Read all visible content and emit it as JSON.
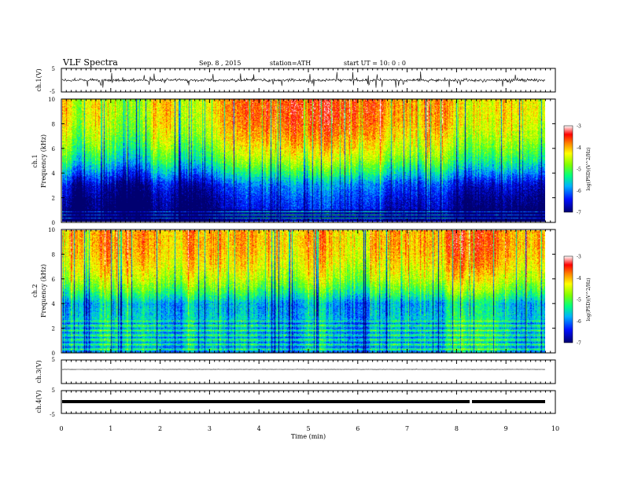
{
  "header": {
    "title": "VLF Spectra",
    "date": "Sep. 8 , 2015",
    "station": "station=ATH",
    "start": "start UT = 10: 0 : 0"
  },
  "chart_data": [
    {
      "type": "line",
      "panel": "ch1-waveform",
      "ylabel": "ch.1(V)",
      "ylim": [
        -5,
        5
      ],
      "yticks": [
        "5",
        "-5"
      ],
      "xlim": [
        0,
        10
      ],
      "series": [
        {
          "values": [
            0,
            0,
            0,
            0,
            0,
            0,
            0,
            0,
            0,
            0
          ]
        }
      ]
    },
    {
      "type": "heatmap",
      "panel": "ch1-spectrogram",
      "ylabel_top": "ch.1",
      "ylabel": "Frequency  (kHz)",
      "ylim": [
        0,
        10
      ],
      "yticks": [
        "0",
        "2",
        "4",
        "6",
        "8",
        "10"
      ],
      "xlim": [
        0,
        10
      ],
      "colorbar": {
        "label": "log(PSD)(V^2/Hz)",
        "ticks": [
          "-3",
          "-4",
          "-5",
          "-6",
          "-7"
        ],
        "range": [
          -7,
          -3
        ]
      },
      "profile_kHz": [
        0,
        1,
        2,
        3,
        4,
        5,
        6,
        7,
        8,
        9,
        10
      ],
      "profile_logPSD": [
        -6.9,
        -6.8,
        -6.6,
        -6.3,
        -5.6,
        -5.0,
        -4.6,
        -4.3,
        -4.1,
        -4.0,
        -4.0
      ]
    },
    {
      "type": "heatmap",
      "panel": "ch2-spectrogram",
      "ylabel_top": "ch.2",
      "ylabel": "Frequency  (kHz)",
      "ylim": [
        0,
        10
      ],
      "yticks": [
        "0",
        "2",
        "4",
        "6",
        "8",
        "10"
      ],
      "xlim": [
        0,
        10
      ],
      "colorbar": {
        "label": "log(PSD)(V^2/Hz)",
        "ticks": [
          "-3",
          "-4",
          "-5",
          "-6",
          "-7"
        ],
        "range": [
          -7,
          -3
        ]
      },
      "profile_kHz": [
        0,
        1,
        2,
        3,
        4,
        5,
        6,
        7,
        8,
        9,
        10
      ],
      "profile_logPSD": [
        -5.6,
        -5.5,
        -5.5,
        -5.6,
        -5.7,
        -5.0,
        -4.5,
        -4.2,
        -4.0,
        -3.9,
        -3.9
      ]
    },
    {
      "type": "line",
      "panel": "ch3-waveform",
      "ylabel": "ch.3(V)",
      "ylim": [
        -5,
        5
      ],
      "yticks": [
        "5"
      ],
      "xlim": [
        0,
        10
      ],
      "series": [
        {
          "values": [
            0,
            0,
            0,
            0,
            0,
            0,
            0,
            0,
            0,
            0
          ]
        }
      ]
    },
    {
      "type": "line",
      "panel": "ch4-waveform",
      "ylabel": "ch.4(V)",
      "ylim": [
        -5,
        5
      ],
      "yticks": [
        "5",
        "-5"
      ],
      "xlim": [
        0,
        10
      ],
      "series": [
        {
          "values": [
            0,
            0,
            0,
            0,
            0,
            0,
            0,
            0,
            0,
            0
          ]
        }
      ]
    }
  ],
  "xaxis": {
    "label": "Time  (min)",
    "ticks": [
      "0",
      "1",
      "2",
      "3",
      "4",
      "5",
      "6",
      "7",
      "8",
      "9",
      "10"
    ],
    "data_end_min": 9.8
  }
}
